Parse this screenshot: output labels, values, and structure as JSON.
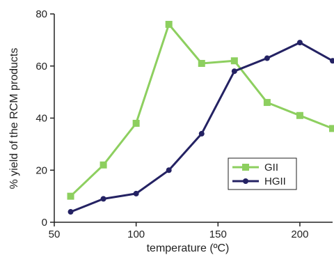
{
  "chart_data": {
    "type": "line",
    "xlabel": "temperature (ºC)",
    "ylabel": "% yield of the RCM products",
    "xlim": [
      50,
      220
    ],
    "ylim": [
      0,
      80
    ],
    "x_ticks": [
      50,
      100,
      150,
      200
    ],
    "y_ticks": [
      0,
      20,
      40,
      60,
      80
    ],
    "grid": false,
    "legend_position": "center-right",
    "series": [
      {
        "name": "GII",
        "color": "#8dcf5f",
        "marker": "square",
        "x": [
          60,
          80,
          100,
          120,
          140,
          160,
          180,
          200,
          220
        ],
        "y": [
          10,
          22,
          38,
          76,
          61,
          62,
          46,
          41,
          36
        ]
      },
      {
        "name": "HGII",
        "color": "#242263",
        "marker": "circle",
        "x": [
          60,
          80,
          100,
          120,
          140,
          160,
          180,
          200,
          220
        ],
        "y": [
          4,
          9,
          11,
          20,
          34,
          58,
          63,
          69,
          62
        ]
      }
    ]
  }
}
